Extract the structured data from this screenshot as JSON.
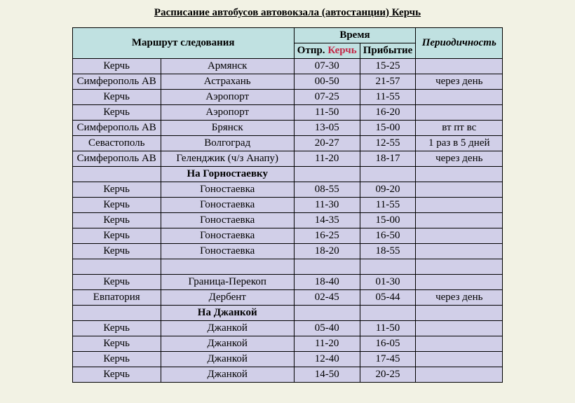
{
  "title": "Расписание автобусов автовокзала (автостанции) Керчь",
  "headers": {
    "route": "Маршрут следования",
    "time": "Время",
    "dep_prefix": "Отпр.",
    "dep_city": "Керчь",
    "arr": "Прибытие",
    "periodic": "Периодичность"
  },
  "rows": [
    {
      "from": "Керчь",
      "to": "Армянск",
      "dep": "07-30",
      "arr": "15-25",
      "per": ""
    },
    {
      "from": "Симферополь АВ",
      "to": "Астрахань",
      "dep": "00-50",
      "arr": "21-57",
      "per": "через день"
    },
    {
      "from": "Керчь",
      "to": "Аэропорт",
      "dep": "07-25",
      "arr": "11-55",
      "per": ""
    },
    {
      "from": "Керчь",
      "to": "Аэропорт",
      "dep": "11-50",
      "arr": "16-20",
      "per": ""
    },
    {
      "from": "Симферополь АВ",
      "to": "Брянск",
      "dep": "13-05",
      "arr": "15-00",
      "per": "вт пт вс"
    },
    {
      "from": "Севастополь",
      "to": "Волгоград",
      "dep": "20-27",
      "arr": "12-55",
      "per": "1 раз в 5 дней"
    },
    {
      "from": "Симферополь АВ",
      "to": "Геленджик (ч/з Анапу)",
      "dep": "11-20",
      "arr": "18-17",
      "per": "через день"
    },
    {
      "sub": true,
      "to": "На Горностаевку"
    },
    {
      "from": "Керчь",
      "to": "Гоностаевка",
      "dep": "08-55",
      "arr": "09-20",
      "per": ""
    },
    {
      "from": "Керчь",
      "to": "Гоностаевка",
      "dep": "11-30",
      "arr": "11-55",
      "per": ""
    },
    {
      "from": "Керчь",
      "to": "Гоностаевка",
      "dep": "14-35",
      "arr": "15-00",
      "per": ""
    },
    {
      "from": "Керчь",
      "to": "Гоностаевка",
      "dep": "16-25",
      "arr": "16-50",
      "per": ""
    },
    {
      "from": "Керчь",
      "to": "Гоностаевка",
      "dep": "18-20",
      "arr": "18-55",
      "per": ""
    },
    {
      "blank": true
    },
    {
      "from": "Керчь",
      "to": "Граница-Перекоп",
      "dep": "18-40",
      "arr": "01-30",
      "per": ""
    },
    {
      "from": "Евпатория",
      "to": "Дербент",
      "dep": "02-45",
      "arr": "05-44",
      "per": "через день"
    },
    {
      "sub": true,
      "to": "На Джанкой"
    },
    {
      "from": "Керчь",
      "to": "Джанкой",
      "dep": "05-40",
      "arr": "11-50",
      "per": ""
    },
    {
      "from": "Керчь",
      "to": "Джанкой",
      "dep": "11-20",
      "arr": "16-05",
      "per": ""
    },
    {
      "from": "Керчь",
      "to": "Джанкой",
      "dep": "12-40",
      "arr": "17-45",
      "per": ""
    },
    {
      "from": "Керчь",
      "to": "Джанкой",
      "dep": "14-50",
      "arr": "20-25",
      "per": ""
    }
  ]
}
